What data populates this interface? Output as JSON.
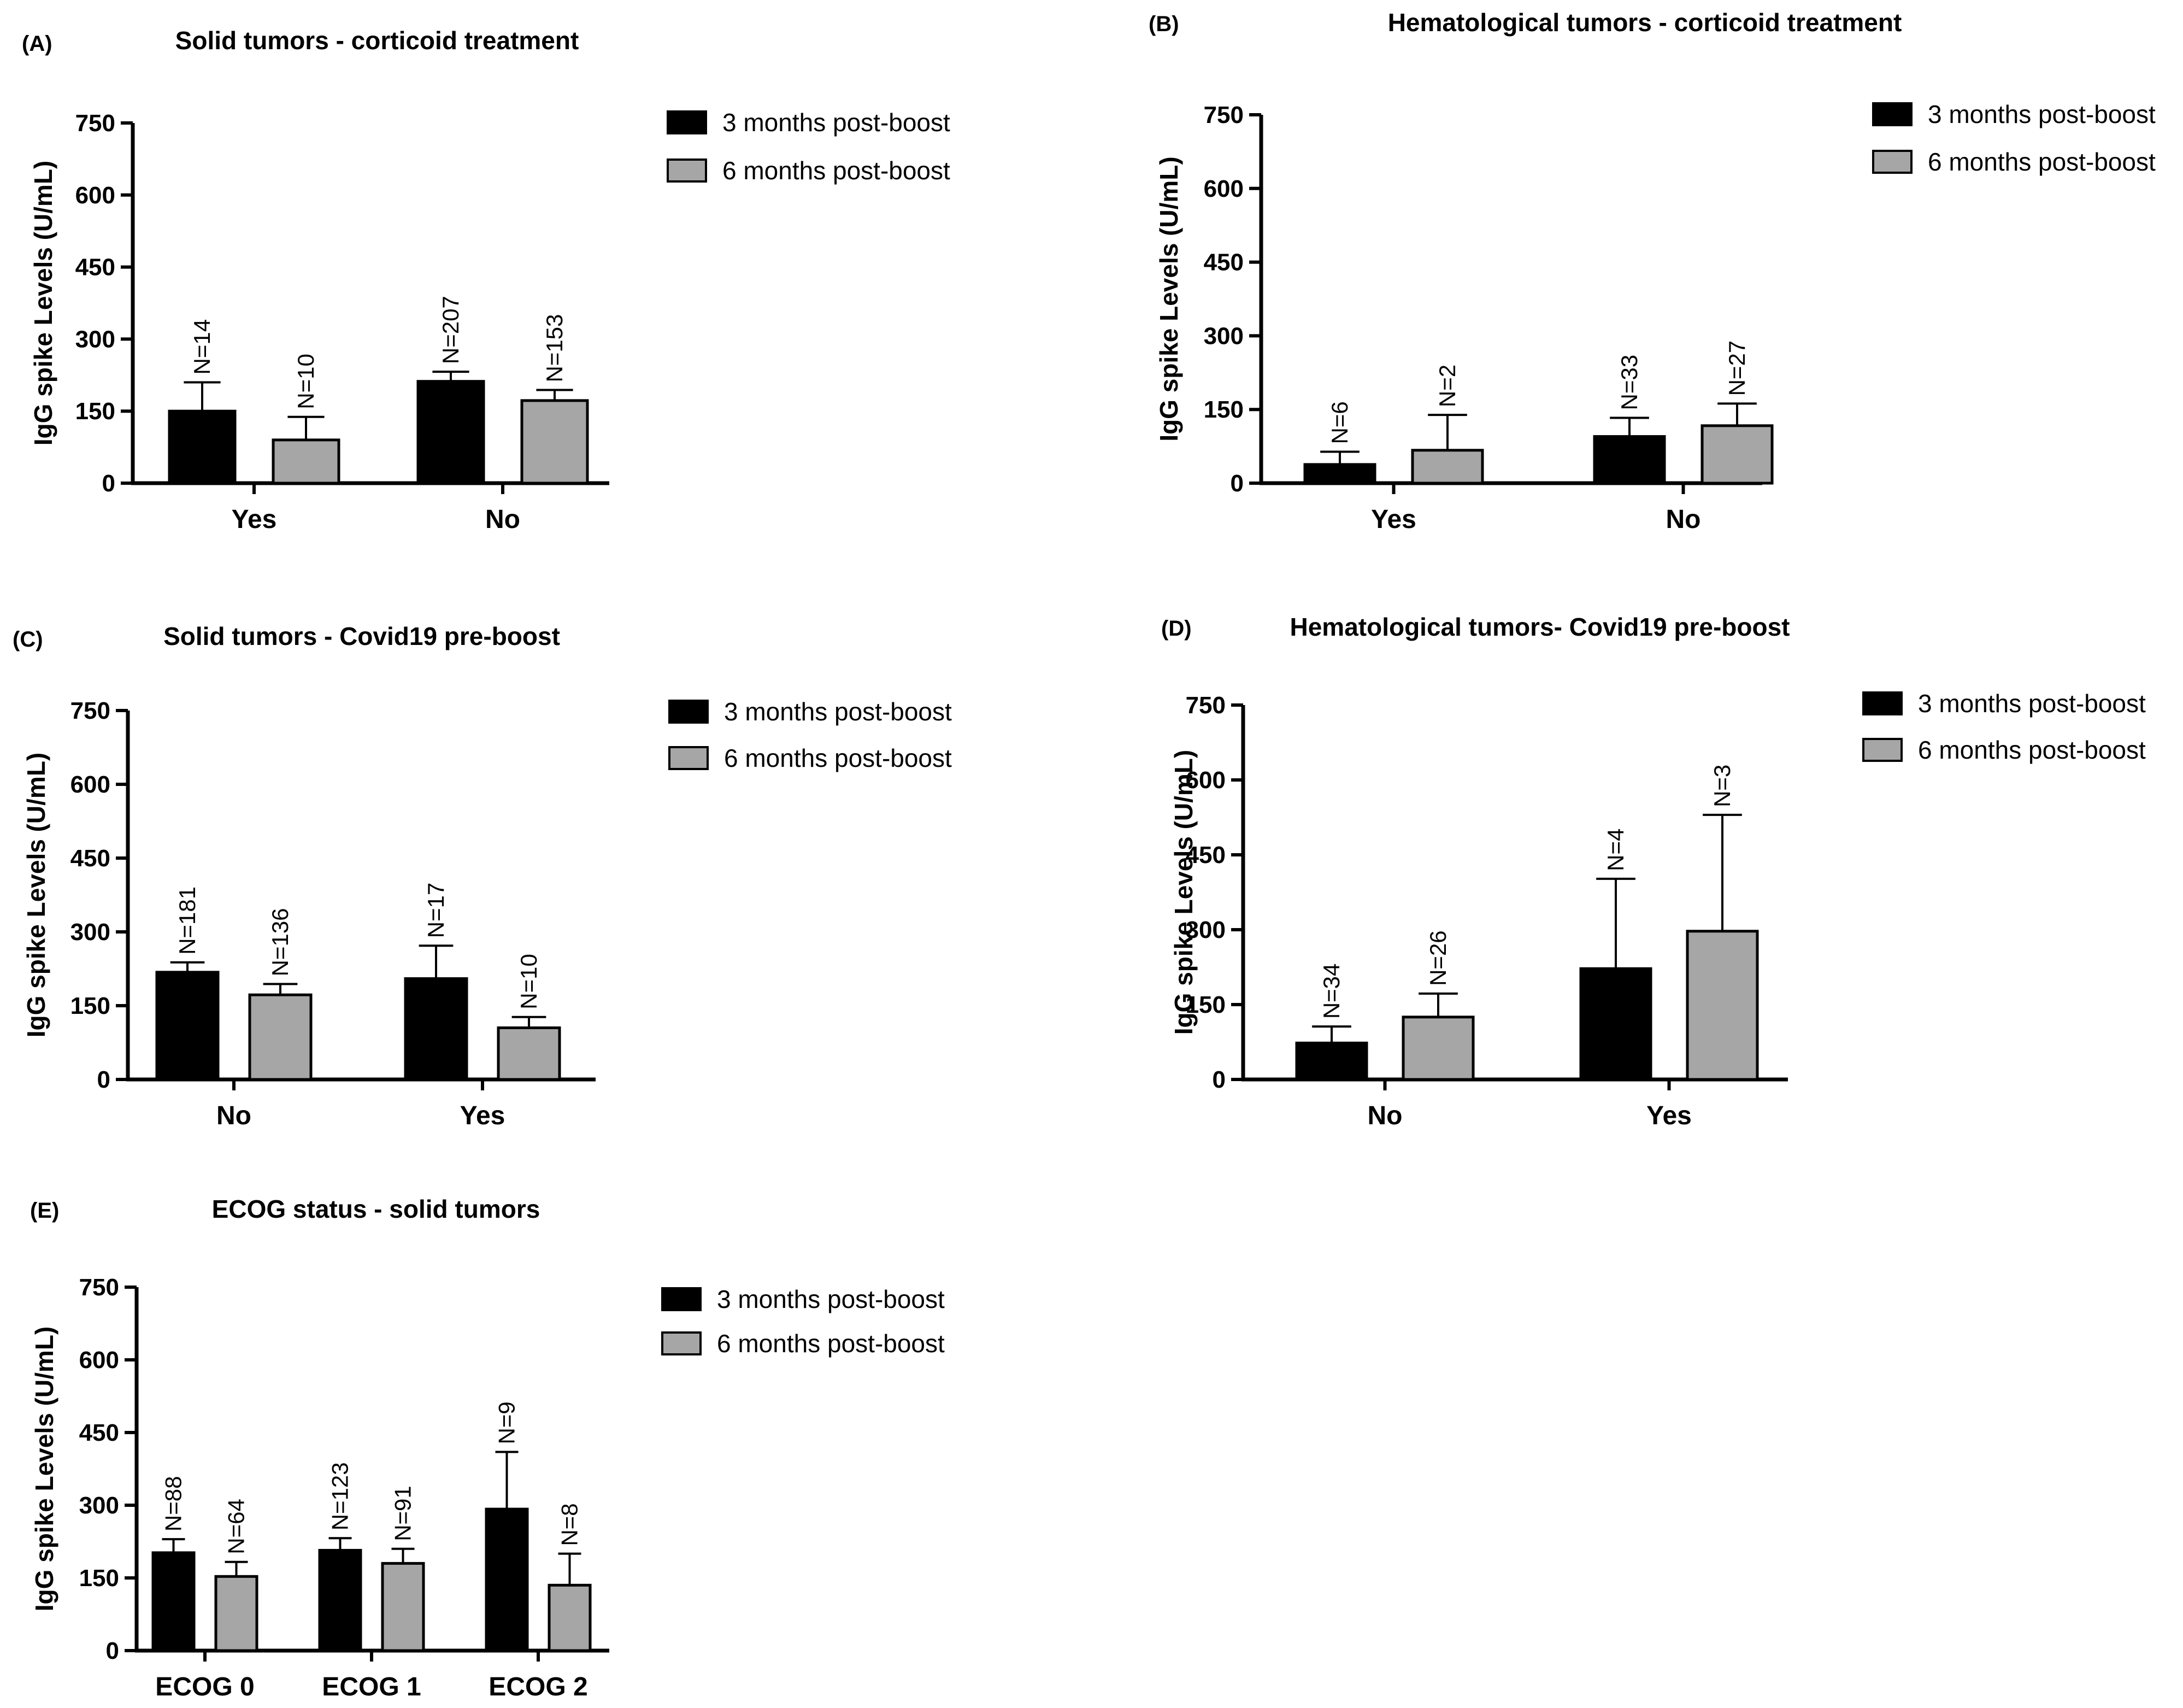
{
  "colors": {
    "series_3m": "#000000",
    "series_6m": "#a6a6a6",
    "axis": "#000000"
  },
  "chart_data": [
    {
      "id": "A",
      "type": "bar",
      "panel_label": "(A)",
      "title": "Solid tumors - corticoid treatment",
      "ylabel": "IgG spike Levels (U/mL)",
      "xlabel": "",
      "ylim": [
        0,
        750
      ],
      "yticks": [
        "0",
        "150",
        "300",
        "450",
        "600",
        "750"
      ],
      "categories": [
        "Yes",
        "No"
      ],
      "legend_position": "right",
      "series": [
        {
          "name": "3 months post-boost",
          "values": [
            150,
            212
          ],
          "errors": [
            60,
            20
          ],
          "n_labels": [
            "N=14",
            "N=207"
          ]
        },
        {
          "name": "6 months post-boost",
          "values": [
            90,
            172
          ],
          "errors": [
            48,
            22
          ],
          "n_labels": [
            "N=10",
            "N=153"
          ]
        }
      ]
    },
    {
      "id": "B",
      "type": "bar",
      "panel_label": "(B)",
      "title": "Hematological tumors - corticoid treatment",
      "ylabel": "IgG spike Levels (U/mL)",
      "xlabel": "",
      "ylim": [
        0,
        750
      ],
      "yticks": [
        "0",
        "150",
        "300",
        "450",
        "600",
        "750"
      ],
      "categories": [
        "Yes",
        "No"
      ],
      "legend_position": "right",
      "series": [
        {
          "name": "3 months post-boost",
          "values": [
            38,
            95
          ],
          "errors": [
            26,
            38
          ],
          "n_labels": [
            "N=6",
            "N=33"
          ]
        },
        {
          "name": "6 months post-boost",
          "values": [
            67,
            117
          ],
          "errors": [
            72,
            45
          ],
          "n_labels": [
            "N=2",
            "N=27"
          ]
        }
      ]
    },
    {
      "id": "C",
      "type": "bar",
      "panel_label": "(C)",
      "title": "Solid tumors - Covid19 pre-boost",
      "ylabel": "IgG spike Levels (U/mL)",
      "xlabel": "",
      "ylim": [
        0,
        750
      ],
      "yticks": [
        "0",
        "150",
        "300",
        "450",
        "600",
        "750"
      ],
      "categories": [
        "No",
        "Yes"
      ],
      "legend_position": "right",
      "series": [
        {
          "name": "3 months post-boost",
          "values": [
            218,
            205
          ],
          "errors": [
            20,
            67
          ],
          "n_labels": [
            "N=181",
            "N=17"
          ]
        },
        {
          "name": "6 months post-boost",
          "values": [
            172,
            105
          ],
          "errors": [
            22,
            22
          ],
          "n_labels": [
            "N=136",
            "N=10"
          ]
        }
      ]
    },
    {
      "id": "D",
      "type": "bar",
      "panel_label": "(D)",
      "title": "Hematological tumors- Covid19 pre-boost",
      "ylabel": "IgG spike Levels (U/mL)",
      "xlabel": "",
      "ylim": [
        0,
        750
      ],
      "yticks": [
        "0",
        "150",
        "300",
        "450",
        "600",
        "750"
      ],
      "categories": [
        "No",
        "Yes"
      ],
      "legend_position": "right",
      "series": [
        {
          "name": "3 months post-boost",
          "values": [
            73,
            222
          ],
          "errors": [
            33,
            180
          ],
          "n_labels": [
            "N=34",
            "N=4"
          ]
        },
        {
          "name": "6 months post-boost",
          "values": [
            125,
            297
          ],
          "errors": [
            47,
            233
          ],
          "n_labels": [
            "N=26",
            "N=3"
          ]
        }
      ]
    },
    {
      "id": "E",
      "type": "bar",
      "panel_label": "(E)",
      "title": "ECOG status - solid tumors",
      "ylabel": "IgG spike Levels (U/mL)",
      "xlabel": "",
      "ylim": [
        0,
        750
      ],
      "yticks": [
        "0",
        "150",
        "300",
        "450",
        "600",
        "750"
      ],
      "categories": [
        "ECOG 0",
        "ECOG 1",
        "ECOG 2"
      ],
      "legend_position": "right",
      "series": [
        {
          "name": "3 months post-boost",
          "values": [
            202,
            207,
            292
          ],
          "errors": [
            28,
            25,
            118
          ],
          "n_labels": [
            "N=88",
            "N=123",
            "N=9"
          ]
        },
        {
          "name": "6 months post-boost",
          "values": [
            153,
            180,
            135
          ],
          "errors": [
            30,
            30,
            65
          ],
          "n_labels": [
            "N=64",
            "N=91",
            "N=8"
          ]
        }
      ]
    }
  ]
}
